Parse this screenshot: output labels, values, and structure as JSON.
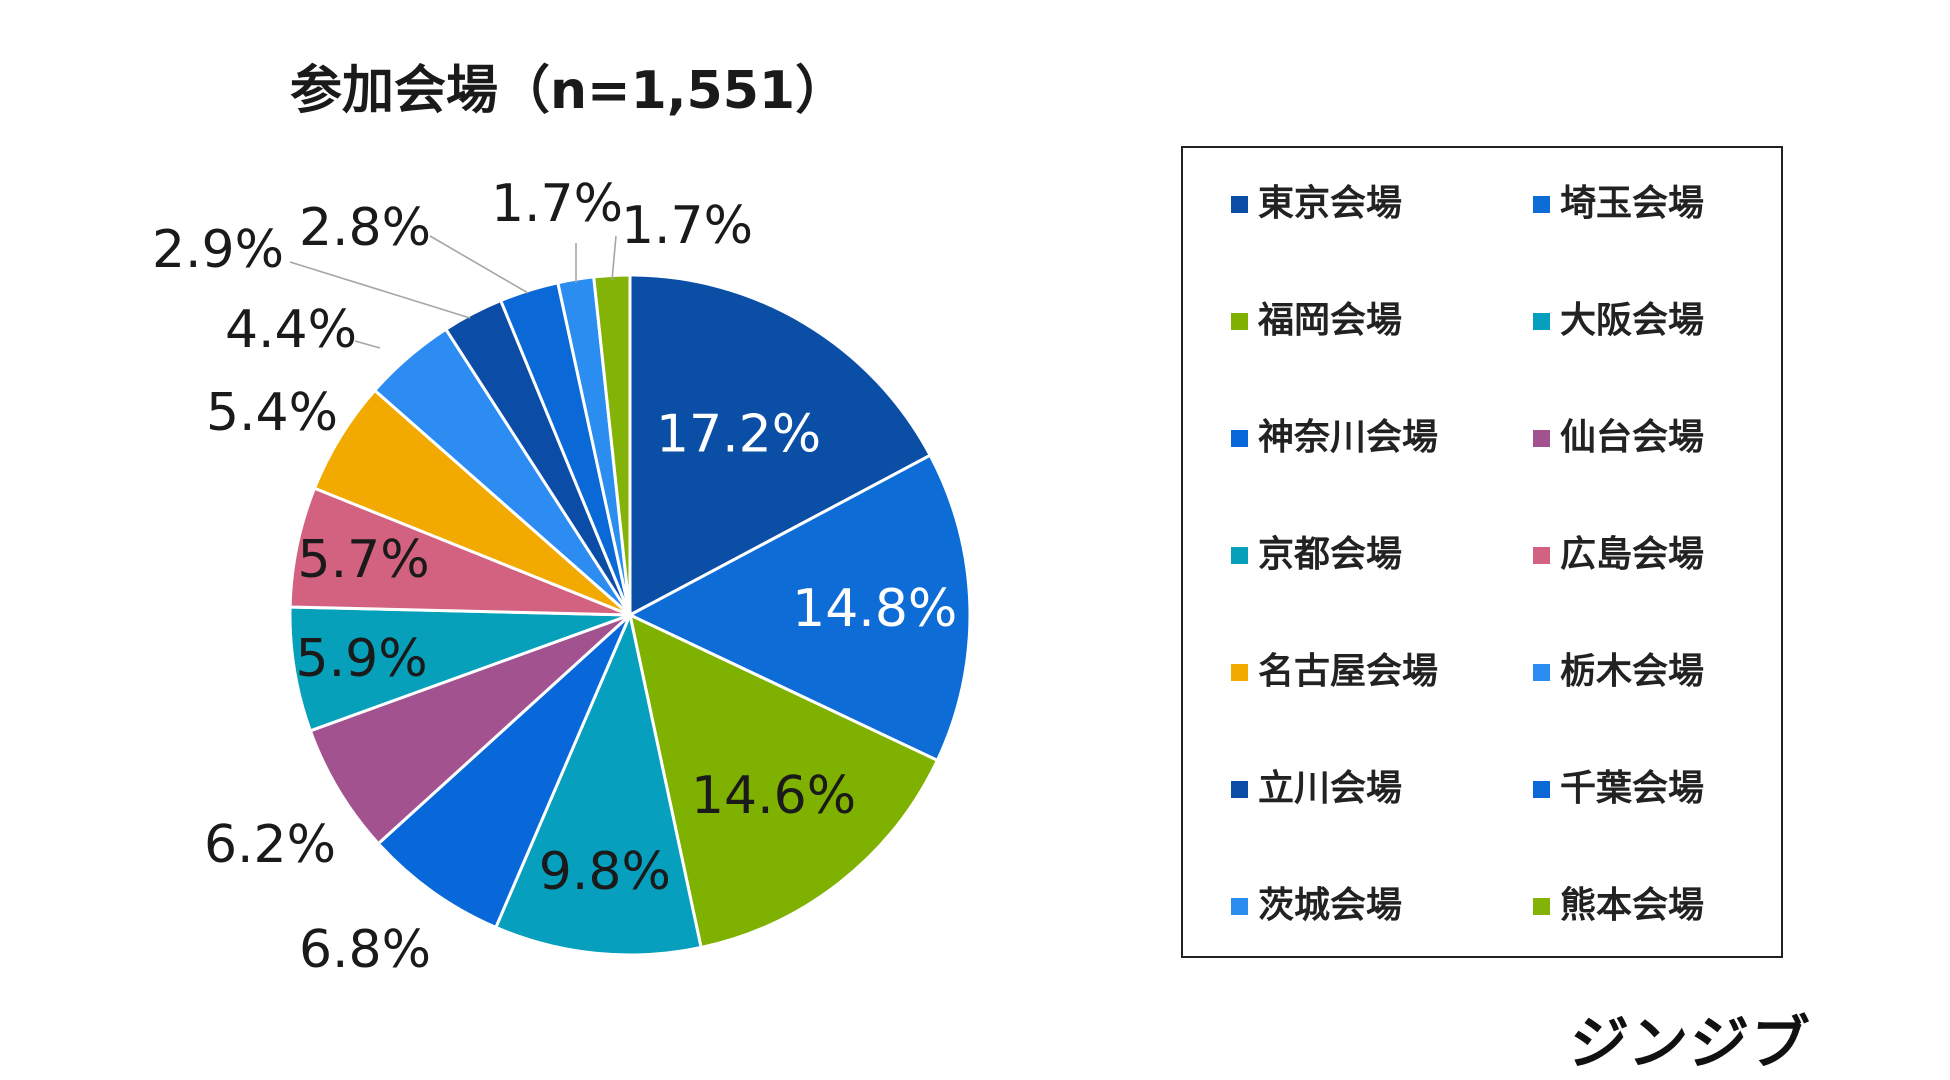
{
  "chart_data": {
    "type": "pie",
    "title": "参加会場（n=1,551）",
    "start": "12 o'clock, clockwise",
    "categories": [
      "東京会場",
      "埼玉会場",
      "福岡会場",
      "大阪会場",
      "神奈川会場",
      "仙台会場",
      "京都会場",
      "広島会場",
      "名古屋会場",
      "栃木会場",
      "立川会場",
      "千葉会場",
      "茨城会場",
      "熊本会場"
    ],
    "values": [
      17.2,
      14.8,
      14.6,
      9.8,
      6.8,
      6.2,
      5.9,
      5.7,
      5.4,
      4.4,
      2.9,
      2.8,
      1.7,
      1.7
    ],
    "data_labels": [
      "17.2%",
      "14.8%",
      "14.6%",
      "9.8%",
      "6.8%",
      "6.2%",
      "5.9%",
      "5.7%",
      "5.4%",
      "4.4%",
      "2.9%",
      "2.8%",
      "1.7%",
      "1.7%"
    ],
    "colors": [
      "#0a4ea5",
      "#0e6cd6",
      "#7fb100",
      "#069fbd",
      "#0868da",
      "#a2528f",
      "#07a0ba",
      "#d2627f",
      "#f2aa00",
      "#2c8cf2",
      "#0b4ca6",
      "#0a69d6",
      "#2b8df0",
      "#83b307"
    ],
    "legend_position": "right"
  },
  "brand": {
    "logo_text": "ジンジブ"
  }
}
